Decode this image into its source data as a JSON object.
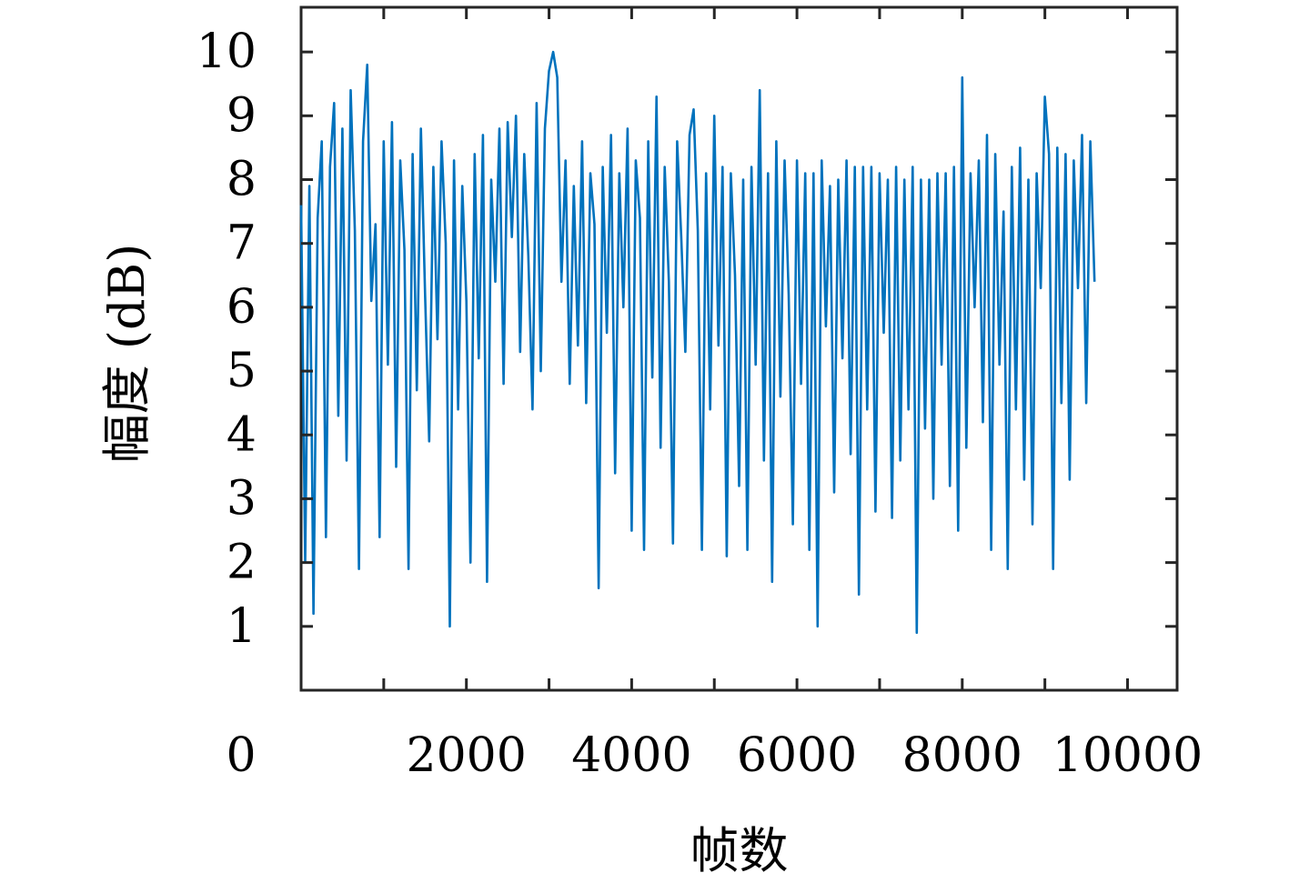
{
  "chart_data": {
    "type": "line",
    "title": "",
    "xlabel": "帧数",
    "ylabel": "幅度 (dB)",
    "xlim": [
      0,
      10600
    ],
    "ylim": [
      0,
      10.7
    ],
    "x_origin_label": "0",
    "xticks": [
      2000,
      4000,
      6000,
      8000,
      10000
    ],
    "xtick_labels": [
      "2000",
      "4000",
      "6000",
      "8000",
      "10000"
    ],
    "minor_xticks": [
      1000,
      3000,
      5000,
      7000,
      9000
    ],
    "yticks": [
      1,
      2,
      3,
      4,
      5,
      6,
      7,
      8,
      9,
      10
    ],
    "ytick_labels": [
      "1",
      "2",
      "3",
      "4",
      "5",
      "6",
      "7",
      "8",
      "9",
      "10"
    ],
    "grid": false,
    "line_color": "#0072BD",
    "series": [
      {
        "sample_step": 50,
        "x_start": 0,
        "values": [
          7.6,
          2.0,
          7.9,
          1.2,
          7.4,
          8.6,
          2.4,
          8.2,
          9.2,
          4.3,
          8.8,
          3.6,
          9.4,
          7.2,
          1.9,
          8.6,
          9.8,
          6.1,
          7.3,
          2.4,
          8.6,
          5.1,
          8.9,
          3.5,
          8.3,
          6.9,
          1.9,
          8.4,
          4.7,
          8.8,
          6.2,
          3.9,
          8.2,
          5.5,
          8.6,
          7.0,
          1.0,
          8.3,
          4.4,
          7.9,
          6.1,
          2.0,
          8.4,
          5.2,
          8.7,
          1.7,
          8.0,
          6.4,
          8.8,
          4.8,
          8.9,
          7.1,
          9.0,
          5.3,
          8.4,
          6.8,
          4.4,
          9.2,
          5.0,
          8.8,
          9.7,
          10.0,
          9.6,
          6.4,
          8.3,
          4.8,
          7.9,
          5.4,
          8.6,
          4.5,
          8.1,
          7.3,
          1.6,
          8.2,
          5.6,
          8.7,
          3.4,
          8.1,
          6.0,
          8.8,
          2.5,
          8.3,
          7.4,
          2.2,
          8.6,
          4.9,
          9.3,
          3.8,
          8.2,
          6.4,
          2.3,
          8.6,
          7.1,
          5.3,
          8.7,
          9.1,
          7.2,
          2.2,
          8.1,
          4.4,
          9.0,
          5.4,
          8.2,
          2.1,
          8.1,
          6.5,
          3.2,
          8.0,
          2.2,
          8.2,
          5.1,
          9.4,
          3.6,
          8.1,
          1.7,
          8.6,
          4.6,
          8.3,
          6.2,
          2.6,
          8.3,
          4.8,
          8.1,
          2.2,
          8.1,
          1.0,
          8.3,
          5.7,
          7.9,
          3.1,
          8.0,
          5.2,
          8.3,
          3.7,
          8.2,
          1.5,
          8.2,
          4.4,
          8.2,
          2.8,
          8.1,
          5.6,
          8.0,
          2.7,
          8.2,
          3.6,
          8.0,
          4.4,
          8.2,
          0.9,
          8.0,
          4.1,
          8.0,
          3.0,
          8.1,
          5.1,
          8.1,
          3.2,
          8.2,
          2.5,
          9.6,
          3.8,
          8.1,
          6.0,
          8.3,
          4.2,
          8.7,
          2.2,
          8.4,
          5.1,
          7.5,
          1.9,
          8.2,
          4.4,
          8.5,
          3.3,
          8.0,
          2.6,
          8.1,
          6.3,
          9.3,
          8.4,
          1.9,
          8.5,
          4.5,
          8.4,
          3.3,
          8.3,
          6.3,
          8.7,
          4.5,
          8.6,
          6.4
        ]
      }
    ]
  }
}
